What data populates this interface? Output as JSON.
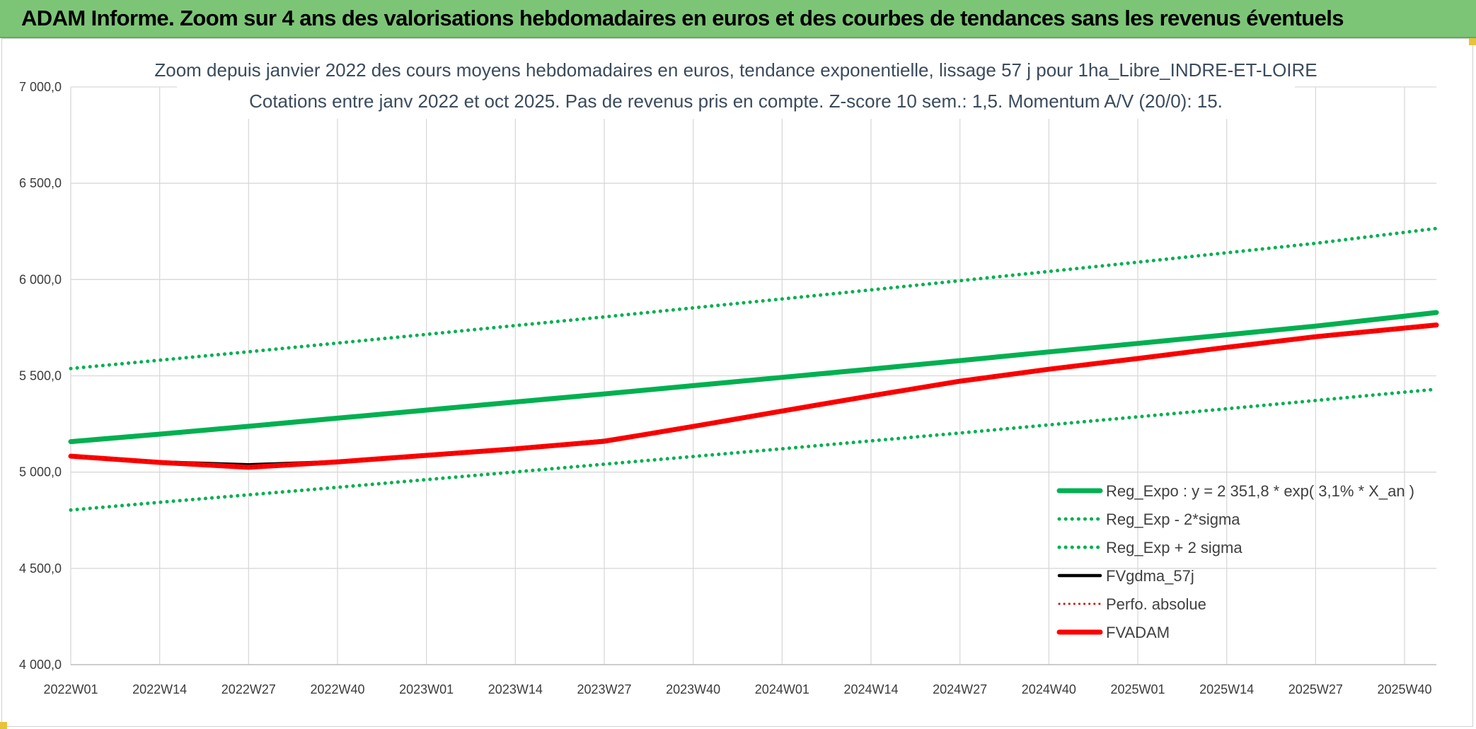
{
  "banner": {
    "title": "ADAM Informe. Zoom sur 4 ans des valorisations hebdomadaires en euros et des courbes de tendances sans les revenus éventuels"
  },
  "chart_data": {
    "type": "line",
    "title": "Zoom depuis janvier 2022 des cours moyens hebdomadaires en euros, tendance exponentielle, lissage 57 j pour 1ha_Libre_INDRE-ET-LOIRE",
    "subtitle": "Cotations entre janv 2022 et oct 2025. Pas de revenus pris en compte. Z-score 10 sem.: 1,5. Momentum A/V (20/0): 15.",
    "xlabel": "",
    "ylabel": "",
    "ylim": [
      4000,
      7000
    ],
    "yticks": [
      "4 000,0",
      "4 500,0",
      "5 000,0",
      "5 500,0",
      "6 000,0",
      "6 500,0",
      "7 000,0"
    ],
    "categories": [
      "2022W01",
      "2022W14",
      "2022W27",
      "2022W40",
      "2023W01",
      "2023W14",
      "2023W27",
      "2023W40",
      "2024W01",
      "2024W14",
      "2024W27",
      "2024W40",
      "2025W01",
      "2025W14",
      "2025W27",
      "2025W40"
    ],
    "legend_position": "bottom-right",
    "series": [
      {
        "name": "Reg_Expo : y = 2 351,8 * exp( 3,1% *  X_an )",
        "color": "#00b050",
        "style": "solid",
        "values": [
          5158,
          5197,
          5238,
          5280,
          5322,
          5364,
          5406,
          5449,
          5492,
          5535,
          5579,
          5624,
          5668,
          5713,
          5758,
          5810
        ]
      },
      {
        "name": "Reg_Exp - 2*sigma",
        "color": "#00b050",
        "style": "dotted",
        "values": [
          4803,
          4843,
          4882,
          4921,
          4961,
          5001,
          5041,
          5081,
          5121,
          5162,
          5203,
          5245,
          5287,
          5329,
          5372,
          5415
        ]
      },
      {
        "name": "Reg_Exp + 2 sigma",
        "color": "#00b050",
        "style": "dotted",
        "values": [
          5538,
          5581,
          5625,
          5670,
          5715,
          5761,
          5806,
          5853,
          5899,
          5946,
          5994,
          6042,
          6090,
          6139,
          6188,
          6245
        ]
      },
      {
        "name": "FVgdma_57j",
        "color": "#000000",
        "style": "solid",
        "values": [
          5083,
          5053,
          5038,
          5055,
          5088,
          5122,
          5165,
          5238,
          5318,
          5397,
          5473,
          5535,
          5590,
          5650,
          5705,
          5748
        ]
      },
      {
        "name": "Perfo. absolue",
        "color": "#e00000",
        "style": "dotted",
        "values": [
          5083,
          5053,
          5028,
          5055,
          5088,
          5122,
          5160,
          5238,
          5318,
          5397,
          5473,
          5535,
          5590,
          5650,
          5705,
          5748
        ]
      },
      {
        "name": "FVADAM",
        "color": "#ff0000",
        "style": "solid",
        "values": [
          5083,
          5050,
          5025,
          5053,
          5087,
          5121,
          5160,
          5237,
          5317,
          5396,
          5472,
          5534,
          5590,
          5648,
          5703,
          5748
        ]
      }
    ]
  }
}
